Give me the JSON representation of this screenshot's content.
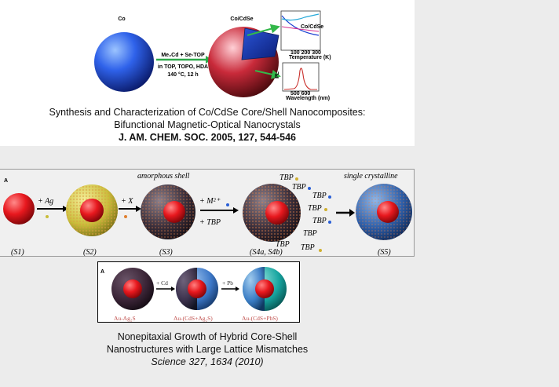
{
  "top": {
    "co_label": "Co",
    "cocdse_label": "Co/CdSe",
    "arrow_text1": "Me₂Cd + Se-TOP",
    "arrow_text2": "in TOP, TOPO, HDA",
    "arrow_text3": "140 °C, 12 h",
    "inset_ylabel1": "",
    "inset_x1": "100  200  300",
    "inset_xlabel1": "Temperature (K)",
    "inset_ylabel2": "PL",
    "inset_x2": "500   600",
    "inset_xlabel2": "Wavelength (nm)",
    "inset_legend": "Co/CdSe",
    "caption_line1": "Synthesis and Characterization of Co/CdSe Core/Shell Nanocomposites:",
    "caption_line2": "Bifunctional Magnetic-Optical Nanocrystals",
    "caption_line3": "J. AM. CHEM. SOC. 2005, 127, 544-546"
  },
  "middle": {
    "panel_letter": "A",
    "step1": "+ Ag",
    "step2": "+ X",
    "step3a": "+ M²⁺",
    "step3b": "+ TBP",
    "amorphous": "amorphous shell",
    "single": "single crystalline",
    "tbp": "TBP",
    "labels": [
      "(S1)",
      "(S2)",
      "(S3)",
      "(S4a, S4b)",
      "(S5)"
    ]
  },
  "lower": {
    "panel_letter": "A",
    "step1": "+ Cd",
    "step2": "+ Pb",
    "labels": [
      "Au-Ag₂S",
      "Au-(CdS+Ag₂S)",
      "Au-(CdS+PbS)"
    ]
  },
  "bottom_caption": {
    "line1": "Nonepitaxial Growth of Hybrid Core-Shell",
    "line2": "Nanostructures with Large Lattice Mismatches",
    "line3": "Science 327, 1634 (2010)"
  },
  "colors": {
    "co_blue": "#2f5fe0",
    "shell_red": "#c62838",
    "core_red": "#e8181e",
    "gold": "#c9bd3a",
    "dark": "#3a2e3a",
    "cyan": "#17a5a0"
  }
}
